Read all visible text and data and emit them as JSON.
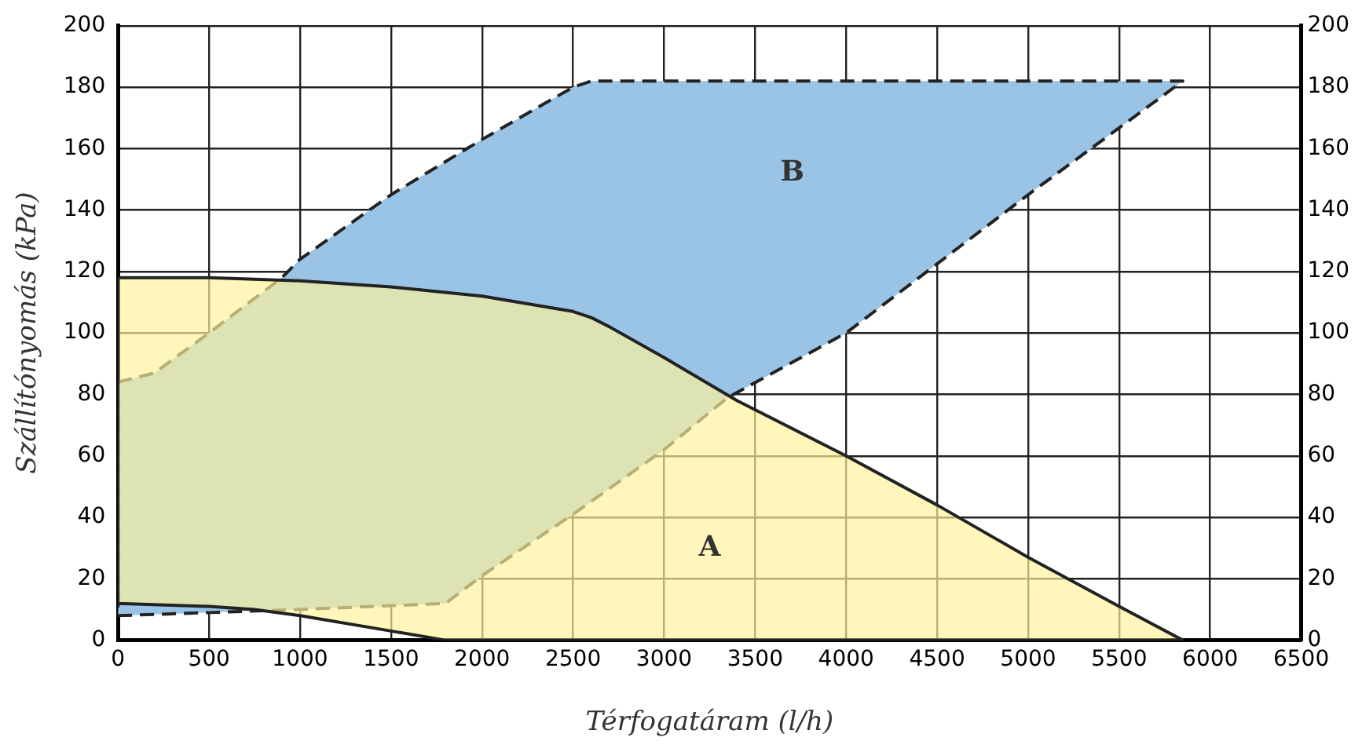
{
  "chart_data": {
    "type": "area",
    "xlabel": "Térfogatáram (l/h)",
    "ylabel": "Szállítónyomás (kPa)",
    "series": [
      {
        "name": "A",
        "color": "#fff29b",
        "line_style": "solid",
        "x": [
          0,
          500,
          1000,
          1500,
          2000,
          2500,
          2600,
          2700,
          3000,
          3400,
          4000,
          4500,
          5000,
          5500,
          5850,
          1800,
          1500,
          1000,
          750,
          500,
          0,
          0
        ],
        "values": [
          118,
          118,
          117,
          115,
          112,
          107,
          105,
          102,
          92,
          78,
          60,
          44,
          27,
          11,
          0,
          0,
          3,
          8,
          10,
          11,
          12,
          118
        ]
      },
      {
        "name": "B",
        "color": "#9ac4e6",
        "line_style": "dashed",
        "x": [
          0,
          200,
          500,
          900,
          1000,
          1500,
          2000,
          2500,
          2600,
          3000,
          5850,
          5000,
          4000,
          3350,
          3000,
          2500,
          2000,
          1800,
          1000,
          500,
          0,
          0
        ],
        "values": [
          84,
          87,
          100,
          118,
          124,
          145,
          163,
          180,
          182,
          182,
          182,
          145,
          100,
          79,
          62,
          41,
          21,
          12,
          10,
          9,
          8,
          84
        ]
      }
    ],
    "xlim": [
      0,
      6500
    ],
    "xticks": [
      0,
      500,
      1000,
      1500,
      2000,
      2500,
      3000,
      3500,
      4000,
      4500,
      5000,
      5500,
      6000,
      6500
    ],
    "ylim": [
      0,
      200
    ],
    "yticks": [
      0,
      20,
      40,
      60,
      80,
      100,
      120,
      140,
      160,
      180,
      200
    ],
    "y2lim": [
      0,
      200
    ],
    "y2ticks": [
      0,
      20,
      40,
      60,
      80,
      100,
      120,
      140,
      160,
      180,
      200
    ],
    "grid": true,
    "legend": false
  }
}
